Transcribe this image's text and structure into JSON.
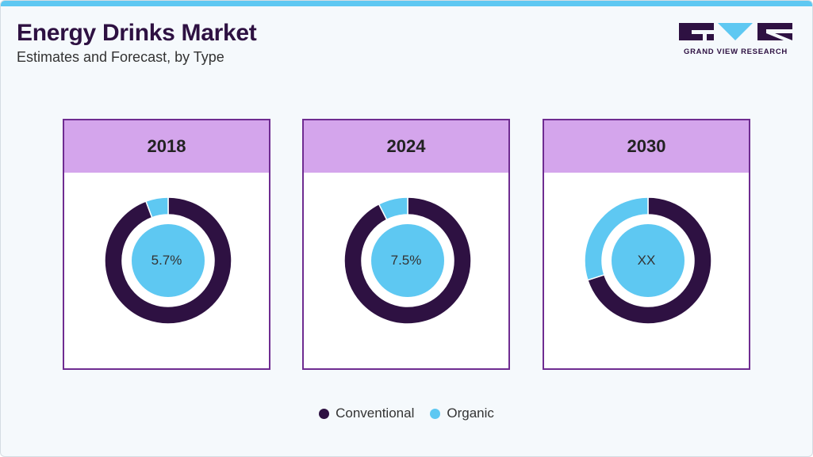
{
  "header": {
    "title": "Energy Drinks Market",
    "subtitle": "Estimates and Forecast, by Type"
  },
  "logo": {
    "text": "GRAND VIEW RESEARCH"
  },
  "colors": {
    "conventional": "#2e1142",
    "organic": "#5ec8f2",
    "panel_border": "#6f2c91",
    "panel_header": "#d4a5ec"
  },
  "chart_data": [
    {
      "type": "pie",
      "title": "2018",
      "center_label": "5.7%",
      "categories": [
        "Conventional",
        "Organic"
      ],
      "values": [
        94.3,
        5.7
      ]
    },
    {
      "type": "pie",
      "title": "2024",
      "center_label": "7.5%",
      "categories": [
        "Conventional",
        "Organic"
      ],
      "values": [
        92.5,
        7.5
      ]
    },
    {
      "type": "pie",
      "title": "2030",
      "center_label": "XX",
      "categories": [
        "Conventional",
        "Organic"
      ],
      "values": [
        70,
        30
      ]
    }
  ],
  "legend": [
    {
      "label": "Conventional",
      "color": "#2e1142"
    },
    {
      "label": "Organic",
      "color": "#5ec8f2"
    }
  ]
}
